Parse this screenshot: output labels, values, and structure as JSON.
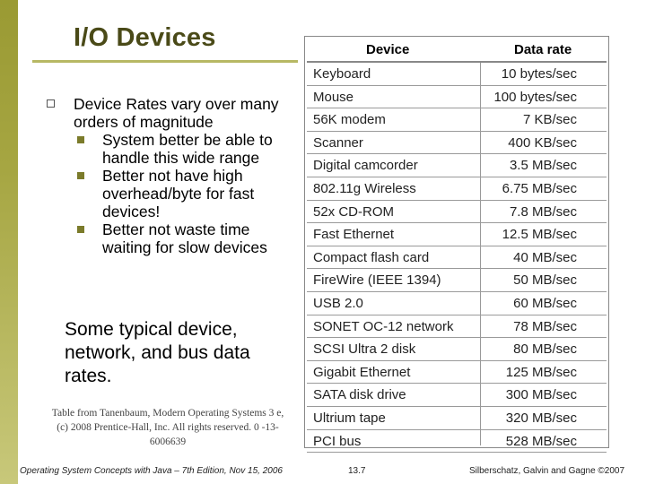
{
  "slide": {
    "title": "I/O Devices",
    "bullet_main": "Device Rates vary over many orders of magnitude",
    "sub_bullets": [
      "System better be able to handle this wide range",
      "Better not have high overhead/byte for fast devices!",
      "Better not waste time waiting for slow devices"
    ],
    "summary": "Some typical device, network, and bus data rates.",
    "credit": "Table from Tanenbaum, Modern Operating Systems 3 e, (c) 2008 Prentice-Hall, Inc. All rights reserved. 0 -13-6006639"
  },
  "table": {
    "headers": [
      "Device",
      "Data rate"
    ],
    "rows": [
      [
        "Keyboard",
        "10 bytes/sec"
      ],
      [
        "Mouse",
        "100 bytes/sec"
      ],
      [
        "56K modem",
        "7 KB/sec"
      ],
      [
        "Scanner",
        "400 KB/sec"
      ],
      [
        "Digital camcorder",
        "3.5 MB/sec"
      ],
      [
        "802.11g Wireless",
        "6.75 MB/sec"
      ],
      [
        "52x CD-ROM",
        "7.8 MB/sec"
      ],
      [
        "Fast Ethernet",
        "12.5 MB/sec"
      ],
      [
        "Compact flash card",
        "40 MB/sec"
      ],
      [
        "FireWire (IEEE 1394)",
        "50 MB/sec"
      ],
      [
        "USB 2.0",
        "60 MB/sec"
      ],
      [
        "SONET OC-12 network",
        "78 MB/sec"
      ],
      [
        "SCSI Ultra 2 disk",
        "80 MB/sec"
      ],
      [
        "Gigabit Ethernet",
        "125 MB/sec"
      ],
      [
        "SATA disk drive",
        "300 MB/sec"
      ],
      [
        "Ultrium tape",
        "320 MB/sec"
      ],
      [
        "PCI bus",
        "528 MB/sec"
      ]
    ]
  },
  "footer": {
    "left": "Operating System Concepts with Java – 7th Edition, Nov 15, 2006",
    "center": "13.7",
    "right": "Silberschatz, Galvin and Gagne ©2007"
  },
  "colors": {
    "accent": "#b7b864",
    "title": "#4a4a18",
    "sub_bullet": "#7b7b2b"
  }
}
